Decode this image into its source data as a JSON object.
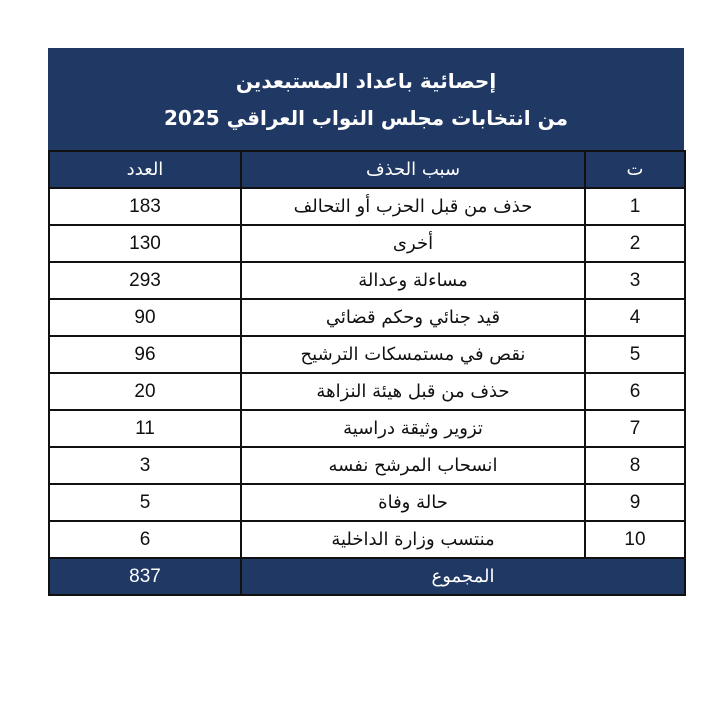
{
  "title": {
    "line1": "إحصائية باعداد المستبعدين",
    "line2": "من انتخابات مجلس النواب العراقي 2025"
  },
  "columns": {
    "index": "ت",
    "reason": "سبب الحذف",
    "count": "العدد"
  },
  "rows": [
    {
      "index": "1",
      "reason": "حذف من قبل الحزب أو التحالف",
      "count": "183"
    },
    {
      "index": "2",
      "reason": "أخرى",
      "count": "130"
    },
    {
      "index": "3",
      "reason": "مساءلة وعدالة",
      "count": "293"
    },
    {
      "index": "4",
      "reason": "قيد جنائي وحكم قضائي",
      "count": "90"
    },
    {
      "index": "5",
      "reason": "نقص في مستمسكات الترشيح",
      "count": "96"
    },
    {
      "index": "6",
      "reason": "حذف من قبل هيئة النزاهة",
      "count": "20"
    },
    {
      "index": "7",
      "reason": "تزوير وثيقة دراسية",
      "count": "11"
    },
    {
      "index": "8",
      "reason": "انسحاب المرشح نفسه",
      "count": "3"
    },
    {
      "index": "9",
      "reason": "حالة وفاة",
      "count": "5"
    },
    {
      "index": "10",
      "reason": "منتسب وزارة الداخلية",
      "count": "6"
    }
  ],
  "total": {
    "label": "المجموع",
    "count": "837"
  },
  "colors": {
    "header_bg": "#203864",
    "header_text": "#ffffff",
    "border": "#111111"
  }
}
